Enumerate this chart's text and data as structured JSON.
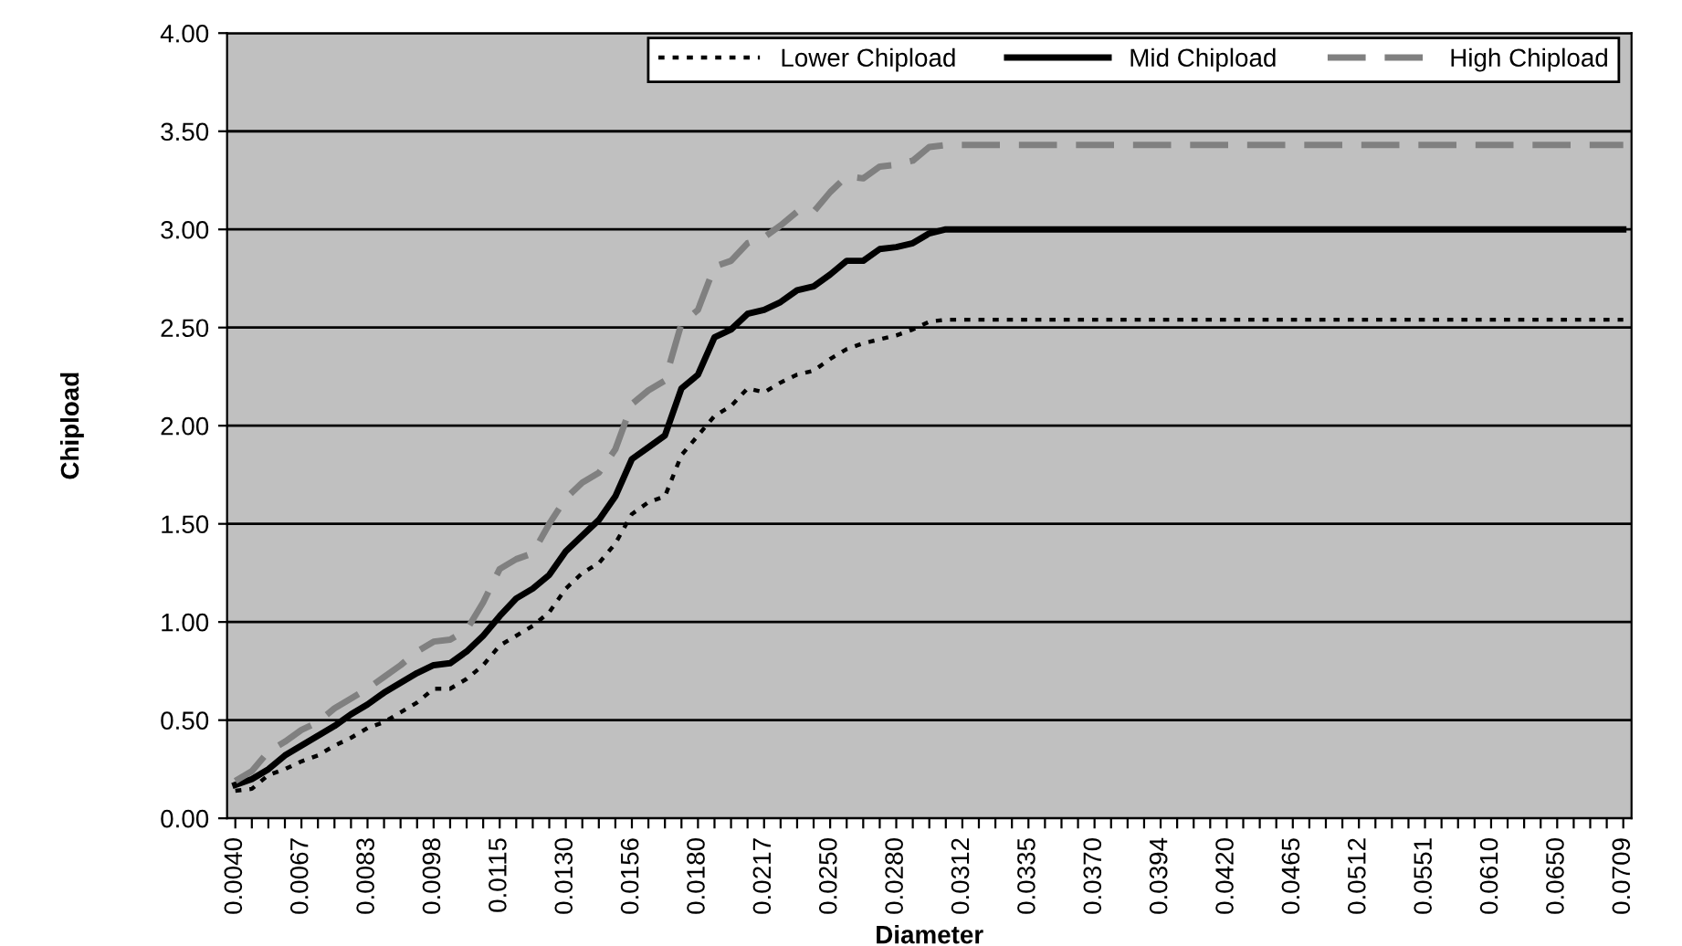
{
  "chart_data": {
    "type": "line",
    "xlabel": "Diameter",
    "ylabel": "Chipload",
    "categories": [
      "0.0040",
      null,
      null,
      null,
      "0.0067",
      null,
      null,
      null,
      "0.0083",
      null,
      null,
      null,
      "0.0098",
      null,
      null,
      null,
      "0.0115",
      null,
      null,
      null,
      "0.0130",
      null,
      null,
      null,
      "0.0156",
      null,
      null,
      null,
      "0.0180",
      null,
      null,
      null,
      "0.0217",
      null,
      null,
      null,
      "0.0250",
      null,
      null,
      null,
      "0.0280",
      null,
      null,
      null,
      "0.0312",
      null,
      null,
      null,
      "0.0335",
      null,
      null,
      null,
      "0.0370",
      null,
      null,
      null,
      "0.0394",
      null,
      null,
      null,
      "0.0420",
      null,
      null,
      null,
      "0.0465",
      null,
      null,
      null,
      "0.0512",
      null,
      null,
      null,
      "0.0551",
      null,
      null,
      null,
      "0.0610",
      null,
      null,
      null,
      "0.0650",
      null,
      null,
      null,
      "0.0709"
    ],
    "series": [
      {
        "name": "Lower Chipload",
        "color": "#000000",
        "line_style": "dotted",
        "values": [
          0.14,
          0.15,
          0.22,
          0.25,
          0.29,
          0.32,
          0.37,
          0.41,
          0.46,
          0.49,
          0.54,
          0.59,
          0.66,
          0.66,
          0.71,
          0.78,
          0.88,
          0.93,
          0.98,
          1.05,
          1.17,
          1.25,
          1.3,
          1.4,
          1.55,
          1.61,
          1.64,
          1.85,
          1.95,
          2.05,
          2.1,
          2.19,
          2.17,
          2.22,
          2.26,
          2.28,
          2.34,
          2.39,
          2.42,
          2.44,
          2.46,
          2.49,
          2.53,
          2.54,
          2.54,
          2.54,
          2.54,
          2.54,
          2.54,
          2.54,
          2.54,
          2.54,
          2.54,
          2.54,
          2.54,
          2.54,
          2.54,
          2.54,
          2.54,
          2.54,
          2.54,
          2.54,
          2.54,
          2.54,
          2.54,
          2.54,
          2.54,
          2.54,
          2.54,
          2.54,
          2.54,
          2.54,
          2.54,
          2.54,
          2.54,
          2.54,
          2.54,
          2.54,
          2.54,
          2.54,
          2.54,
          2.54,
          2.54,
          2.54,
          2.54
        ]
      },
      {
        "name": "Mid Chipload",
        "color": "#000000",
        "line_style": "solid",
        "values": [
          0.17,
          0.2,
          0.25,
          0.32,
          0.37,
          0.42,
          0.47,
          0.53,
          0.58,
          0.64,
          0.69,
          0.74,
          0.78,
          0.79,
          0.85,
          0.93,
          1.03,
          1.12,
          1.17,
          1.24,
          1.36,
          1.44,
          1.52,
          1.64,
          1.83,
          1.89,
          1.95,
          2.19,
          2.26,
          2.45,
          2.49,
          2.57,
          2.59,
          2.63,
          2.69,
          2.71,
          2.77,
          2.84,
          2.84,
          2.9,
          2.91,
          2.93,
          2.98,
          3.0,
          3.0,
          3.0,
          3.0,
          3.0,
          3.0,
          3.0,
          3.0,
          3.0,
          3.0,
          3.0,
          3.0,
          3.0,
          3.0,
          3.0,
          3.0,
          3.0,
          3.0,
          3.0,
          3.0,
          3.0,
          3.0,
          3.0,
          3.0,
          3.0,
          3.0,
          3.0,
          3.0,
          3.0,
          3.0,
          3.0,
          3.0,
          3.0,
          3.0,
          3.0,
          3.0,
          3.0,
          3.0,
          3.0,
          3.0,
          3.0,
          3.0
        ]
      },
      {
        "name": "High Chipload",
        "color": "#808080",
        "line_style": "dashed",
        "values": [
          0.19,
          0.24,
          0.34,
          0.39,
          0.45,
          0.49,
          0.56,
          0.61,
          0.66,
          0.72,
          0.78,
          0.85,
          0.9,
          0.91,
          0.96,
          1.1,
          1.27,
          1.32,
          1.35,
          1.5,
          1.63,
          1.71,
          1.76,
          1.88,
          2.11,
          2.18,
          2.23,
          2.52,
          2.59,
          2.81,
          2.84,
          2.93,
          2.96,
          3.02,
          3.09,
          3.09,
          3.19,
          3.27,
          3.26,
          3.32,
          3.33,
          3.35,
          3.42,
          3.43,
          3.43,
          3.43,
          3.43,
          3.43,
          3.43,
          3.43,
          3.43,
          3.43,
          3.43,
          3.43,
          3.43,
          3.43,
          3.43,
          3.43,
          3.43,
          3.43,
          3.43,
          3.43,
          3.43,
          3.43,
          3.43,
          3.43,
          3.43,
          3.43,
          3.43,
          3.43,
          3.43,
          3.43,
          3.43,
          3.43,
          3.43,
          3.43,
          3.43,
          3.43,
          3.43,
          3.43,
          3.43,
          3.43,
          3.43,
          3.43,
          3.43
        ]
      }
    ],
    "ylim": [
      0,
      4
    ],
    "yticks": [
      {
        "value": 0,
        "label": "0.00"
      },
      {
        "value": 0.5,
        "label": "0.50"
      },
      {
        "value": 1,
        "label": "1.00"
      },
      {
        "value": 1.5,
        "label": "1.50"
      },
      {
        "value": 2,
        "label": "2.00"
      },
      {
        "value": 2.5,
        "label": "2.50"
      },
      {
        "value": 3,
        "label": "3.00"
      },
      {
        "value": 3.5,
        "label": "3.50"
      },
      {
        "value": 4,
        "label": "4.00"
      }
    ],
    "grid": "y",
    "legend": "top right"
  }
}
